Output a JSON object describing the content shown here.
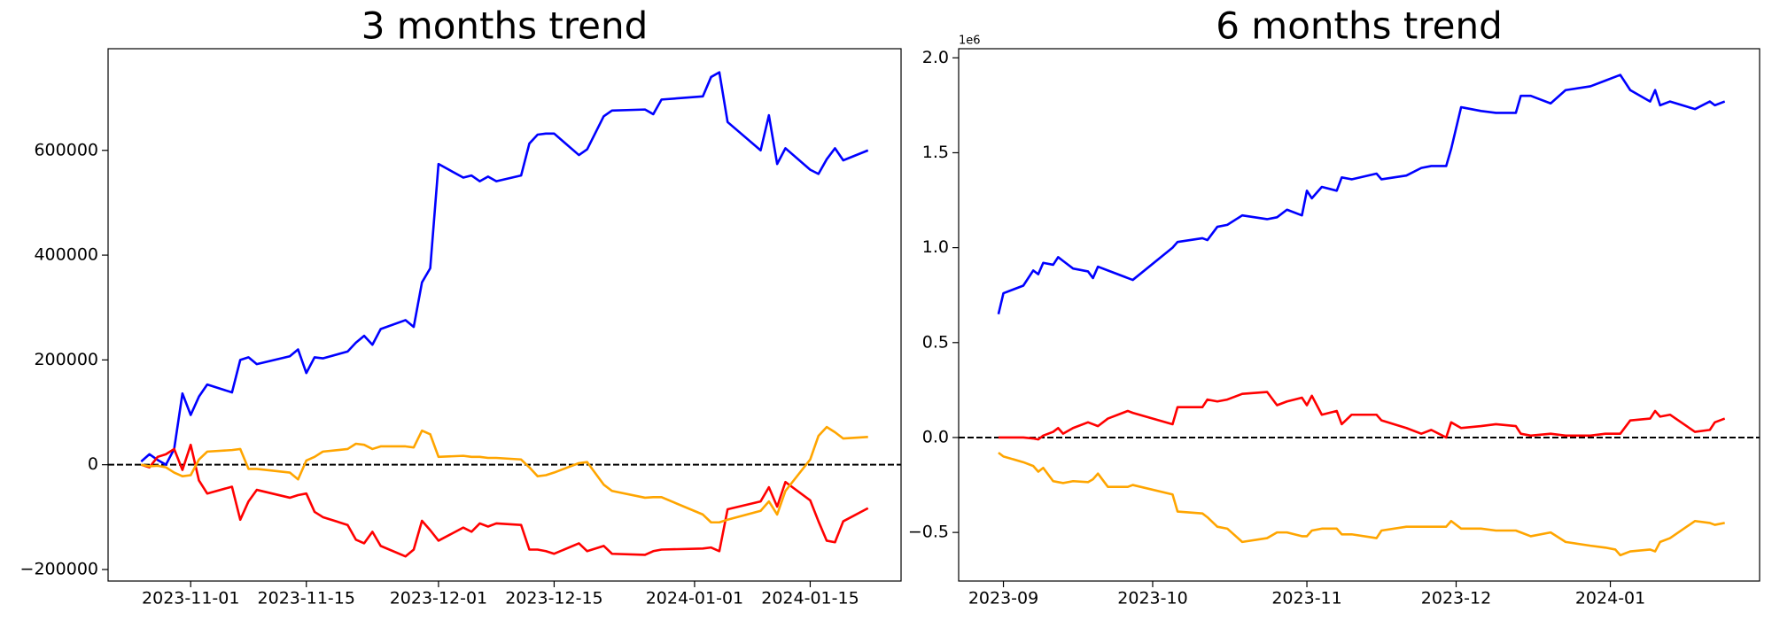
{
  "chart_data": [
    {
      "type": "line",
      "title": "3 months trend",
      "x": [
        "2023-10-26",
        "2023-10-27",
        "2023-10-28",
        "2023-10-29",
        "2023-10-30",
        "2023-10-31",
        "2023-11-01",
        "2023-11-02",
        "2023-11-03",
        "2023-11-06",
        "2023-11-07",
        "2023-11-08",
        "2023-11-09",
        "2023-11-13",
        "2023-11-14",
        "2023-11-15",
        "2023-11-16",
        "2023-11-17",
        "2023-11-20",
        "2023-11-21",
        "2023-11-22",
        "2023-11-23",
        "2023-11-24",
        "2023-11-27",
        "2023-11-28",
        "2023-11-29",
        "2023-11-30",
        "2023-12-01",
        "2023-12-04",
        "2023-12-05",
        "2023-12-06",
        "2023-12-07",
        "2023-12-08",
        "2023-12-11",
        "2023-12-12",
        "2023-12-13",
        "2023-12-14",
        "2023-12-15",
        "2023-12-18",
        "2023-12-19",
        "2023-12-21",
        "2023-12-22",
        "2023-12-26",
        "2023-12-27",
        "2023-12-28",
        "2024-01-02",
        "2024-01-03",
        "2024-01-04",
        "2024-01-05",
        "2024-01-09",
        "2024-01-10",
        "2024-01-11",
        "2024-01-12",
        "2024-01-15",
        "2024-01-16",
        "2024-01-17",
        "2024-01-18",
        "2024-01-19",
        "2024-01-22"
      ],
      "series": [
        {
          "color": "#0000ff",
          "values": [
            6000,
            20000,
            9000,
            0,
            30000,
            136000,
            95000,
            130000,
            153000,
            138000,
            200000,
            205000,
            192000,
            207000,
            220000,
            175000,
            205000,
            203000,
            216000,
            233000,
            246000,
            229000,
            259000,
            276000,
            263000,
            348000,
            375000,
            574000,
            548000,
            552000,
            541000,
            550000,
            541000,
            552000,
            613000,
            630000,
            632000,
            632000,
            591000,
            602000,
            665000,
            676000,
            678000,
            669000,
            697000,
            703000,
            740000,
            749000,
            654000,
            600000,
            667000,
            574000,
            604000,
            563000,
            555000,
            583000,
            604000,
            581000,
            600000
          ]
        },
        {
          "color": "#ff0000",
          "values": [
            0,
            -5000,
            15000,
            20000,
            30000,
            -10000,
            38000,
            -30000,
            -55000,
            -42000,
            -105000,
            -70000,
            -48000,
            -63000,
            -58000,
            -55000,
            -90000,
            -100000,
            -115000,
            -143000,
            -150000,
            -128000,
            -155000,
            -175000,
            -162000,
            -107000,
            -125000,
            -145000,
            -120000,
            -128000,
            -112000,
            -118000,
            -112000,
            -115000,
            -162000,
            -162000,
            -165000,
            -170000,
            -150000,
            -165000,
            -155000,
            -170000,
            -172000,
            -165000,
            -162000,
            -160000,
            -158000,
            -165000,
            -85000,
            -70000,
            -43000,
            -80000,
            -33000,
            -68000,
            -108000,
            -145000,
            -148000,
            -108000,
            -83000
          ]
        },
        {
          "color": "#ffa500",
          "values": [
            0,
            -3000,
            -2000,
            -5000,
            -15000,
            -22000,
            -20000,
            10000,
            25000,
            28000,
            30000,
            -8000,
            -8000,
            -15000,
            -28000,
            8000,
            15000,
            25000,
            30000,
            40000,
            38000,
            30000,
            35000,
            35000,
            33000,
            65000,
            58000,
            15000,
            17000,
            15000,
            15000,
            13000,
            13000,
            10000,
            -5000,
            -22000,
            -20000,
            -15000,
            3000,
            5000,
            -38000,
            -50000,
            -63000,
            -62000,
            -62000,
            -95000,
            -110000,
            -110000,
            -105000,
            -88000,
            -70000,
            -95000,
            -50000,
            10000,
            55000,
            72000,
            62000,
            50000,
            53000
          ]
        }
      ],
      "xlim": [
        "2023-10-22",
        "2024-01-26"
      ],
      "xticks": [
        "2023-11-01",
        "2023-11-15",
        "2023-12-01",
        "2023-12-15",
        "2024-01-01",
        "2024-01-15"
      ],
      "ylim": [
        -222000,
        794000
      ],
      "yticks": [
        {
          "value": -200000,
          "label": "−200000"
        },
        0,
        200000,
        400000,
        600000
      ],
      "hline": 0
    },
    {
      "type": "line",
      "title": "6 months trend",
      "x": [
        "2023-08-31",
        "2023-09-01",
        "2023-09-05",
        "2023-09-07",
        "2023-09-08",
        "2023-09-09",
        "2023-09-11",
        "2023-09-12",
        "2023-09-13",
        "2023-09-15",
        "2023-09-18",
        "2023-09-19",
        "2023-09-20",
        "2023-09-22",
        "2023-09-26",
        "2023-09-27",
        "2023-10-05",
        "2023-10-06",
        "2023-10-11",
        "2023-10-12",
        "2023-10-14",
        "2023-10-16",
        "2023-10-19",
        "2023-10-24",
        "2023-10-26",
        "2023-10-28",
        "2023-10-31",
        "2023-11-01",
        "2023-11-02",
        "2023-11-04",
        "2023-11-07",
        "2023-11-08",
        "2023-11-10",
        "2023-11-15",
        "2023-11-16",
        "2023-11-21",
        "2023-11-24",
        "2023-11-26",
        "2023-11-29",
        "2023-11-30",
        "2023-12-02",
        "2023-12-06",
        "2023-12-09",
        "2023-12-13",
        "2023-12-14",
        "2023-12-16",
        "2023-12-20",
        "2023-12-23",
        "2023-12-28",
        "2023-12-31",
        "2024-01-02",
        "2024-01-03",
        "2024-01-05",
        "2024-01-09",
        "2024-01-10",
        "2024-01-11",
        "2024-01-13",
        "2024-01-18",
        "2024-01-21",
        "2024-01-22",
        "2024-01-24"
      ],
      "series": [
        {
          "color": "#0000ff",
          "values": [
            0.65,
            0.76,
            0.8,
            0.88,
            0.86,
            0.92,
            0.91,
            0.95,
            0.93,
            0.89,
            0.875,
            0.84,
            0.9,
            0.88,
            0.84,
            0.83,
            1.0,
            1.03,
            1.05,
            1.04,
            1.11,
            1.12,
            1.17,
            1.15,
            1.16,
            1.2,
            1.17,
            1.3,
            1.26,
            1.32,
            1.3,
            1.37,
            1.36,
            1.39,
            1.36,
            1.38,
            1.42,
            1.43,
            1.43,
            1.52,
            1.74,
            1.72,
            1.71,
            1.71,
            1.8,
            1.8,
            1.76,
            1.83,
            1.85,
            1.88,
            1.9,
            1.91,
            1.83,
            1.77,
            1.83,
            1.75,
            1.77,
            1.73,
            1.77,
            1.75,
            1.77
          ]
        },
        {
          "color": "#ff0000",
          "values": [
            0,
            0,
            0,
            -0.005,
            -0.01,
            0.01,
            0.03,
            0.05,
            0.02,
            0.05,
            0.08,
            0.07,
            0.06,
            0.1,
            0.14,
            0.13,
            0.07,
            0.16,
            0.16,
            0.2,
            0.19,
            0.2,
            0.23,
            0.24,
            0.17,
            0.19,
            0.21,
            0.17,
            0.22,
            0.12,
            0.14,
            0.07,
            0.12,
            0.12,
            0.09,
            0.05,
            0.02,
            0.04,
            0.0,
            0.08,
            0.05,
            0.06,
            0.07,
            0.06,
            0.02,
            0.01,
            0.02,
            0.01,
            0.01,
            0.02,
            0.02,
            0.02,
            0.09,
            0.1,
            0.14,
            0.11,
            0.12,
            0.03,
            0.04,
            0.08,
            0.1
          ]
        },
        {
          "color": "#ffa500",
          "values": [
            -0.08,
            -0.1,
            -0.13,
            -0.15,
            -0.18,
            -0.16,
            -0.23,
            -0.235,
            -0.24,
            -0.23,
            -0.235,
            -0.22,
            -0.19,
            -0.26,
            -0.26,
            -0.25,
            -0.3,
            -0.39,
            -0.4,
            -0.42,
            -0.47,
            -0.48,
            -0.55,
            -0.53,
            -0.5,
            -0.5,
            -0.52,
            -0.52,
            -0.49,
            -0.48,
            -0.48,
            -0.51,
            -0.51,
            -0.53,
            -0.49,
            -0.47,
            -0.47,
            -0.47,
            -0.47,
            -0.44,
            -0.48,
            -0.48,
            -0.49,
            -0.49,
            -0.5,
            -0.52,
            -0.5,
            -0.55,
            -0.57,
            -0.58,
            -0.59,
            -0.62,
            -0.6,
            -0.59,
            -0.6,
            -0.55,
            -0.53,
            -0.44,
            -0.45,
            -0.46,
            -0.45
          ]
        }
      ],
      "xlim": [
        "2023-08-23",
        "2024-01-31"
      ],
      "xticks": [
        "2023-09",
        "2023-10",
        "2023-11",
        "2023-12",
        "2024-01"
      ],
      "ylim": [
        -0.756,
        2.048
      ],
      "yticks": [
        {
          "value": -0.5,
          "label": "−0.5"
        },
        {
          "value": 0,
          "label": "0.0"
        },
        0.5,
        {
          "value": 1,
          "label": "1.0"
        },
        1.5,
        {
          "value": 2,
          "label": "2.0"
        }
      ],
      "y_offset_label": "1e6",
      "hline": 0
    }
  ]
}
